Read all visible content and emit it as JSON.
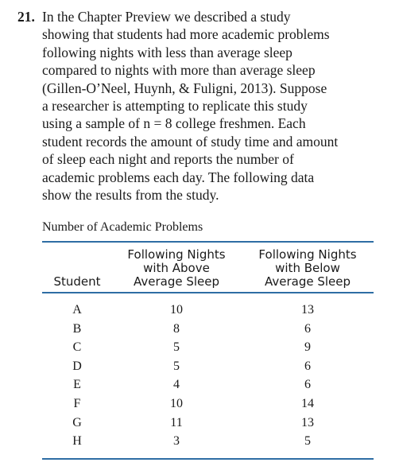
{
  "problem": {
    "number": "21.",
    "text": "In the Chapter Preview we described a study\nshowing that students had more academic problems\nfollowing nights with less than average sleep\ncompared to nights with more than average sleep\n(Gillen-O’Neel, Huynh, & Fuligni, 2013). Suppose\na researcher is attempting to replicate this study\nusing a sample of n = 8 college freshmen. Each\nstudent records the amount of study time and amount\nof sleep each night and reports the number of\nacademic problems each day. The following data\nshow the results from the study."
  },
  "table": {
    "caption": "Number of Academic Problems",
    "headers": {
      "student": "Student",
      "above": "Following Nights\nwith Above\nAverage Sleep",
      "below": "Following Nights\nwith Below\nAverage Sleep"
    },
    "rows": [
      {
        "student": "A",
        "above": "10",
        "below": "13"
      },
      {
        "student": "B",
        "above": "8",
        "below": "6"
      },
      {
        "student": "C",
        "above": "5",
        "below": "9"
      },
      {
        "student": "D",
        "above": "5",
        "below": "6"
      },
      {
        "student": "E",
        "above": "4",
        "below": "6"
      },
      {
        "student": "F",
        "above": "10",
        "below": "14"
      },
      {
        "student": "G",
        "above": "11",
        "below": "13"
      },
      {
        "student": "H",
        "above": "3",
        "below": "5"
      }
    ],
    "rule_color": "#2e6da4"
  }
}
